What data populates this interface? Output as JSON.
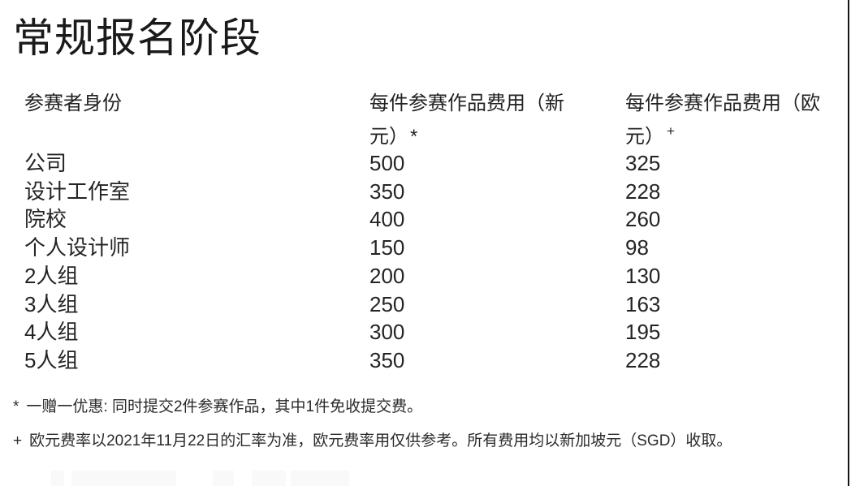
{
  "page": {
    "title": "常规报名阶段"
  },
  "table": {
    "header": {
      "identity": "参赛者身份",
      "fee_sgd": "每件参赛作品费用（新元）",
      "fee_sgd_mark": "*",
      "fee_eur": "每件参赛作品费用（欧元）",
      "fee_eur_mark": "+"
    },
    "rows": [
      {
        "identity": "公司",
        "sgd": "500",
        "eur": "325"
      },
      {
        "identity": "设计工作室",
        "sgd": "350",
        "eur": "228"
      },
      {
        "identity": "院校",
        "sgd": "400",
        "eur": "260"
      },
      {
        "identity": "个人设计师",
        "sgd": "150",
        "eur": "98"
      },
      {
        "identity": "2人组",
        "sgd": "200",
        "eur": "130"
      },
      {
        "identity": "3人组",
        "sgd": "250",
        "eur": "163"
      },
      {
        "identity": "4人组",
        "sgd": "300",
        "eur": "195"
      },
      {
        "identity": "5人组",
        "sgd": "350",
        "eur": "228"
      }
    ]
  },
  "footnotes": [
    {
      "marker": "*",
      "text": "一赠一优惠: 同时提交2件参赛作品，其中1件免收提交费。"
    },
    {
      "marker": "+",
      "text": "欧元费率以2021年11月22日的汇率为准，欧元费率用仅供参考。所有费用均以新加坡元（SGD）收取。"
    }
  ],
  "colors": {
    "background": "#ffffff",
    "text": "#1e1e1e",
    "right_edge_line": "#161616"
  }
}
